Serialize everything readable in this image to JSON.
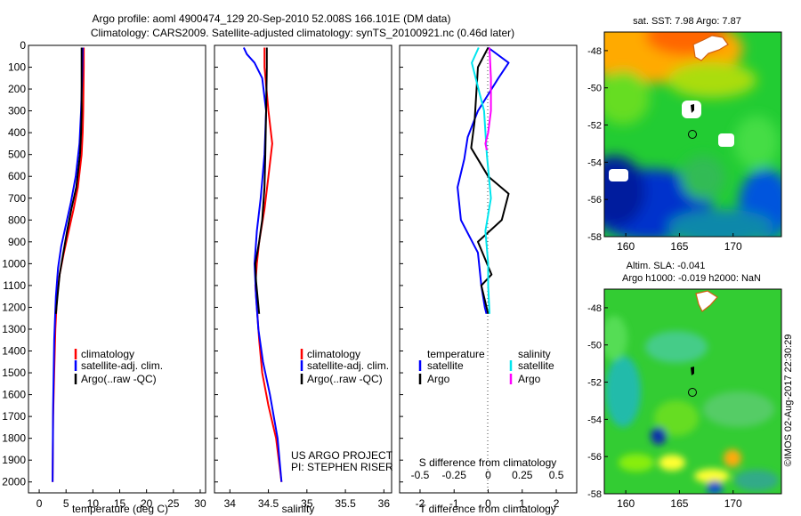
{
  "header": {
    "title_line1": "Argo profile: aoml 4900474_129 20-Sep-2010 52.008S 166.101E (DM data)",
    "title_line2": "Climatology: CARS2009. Satellite-adjusted climatology: synTS_20100921.nc (0.46d later)"
  },
  "colors": {
    "climatology": "#ff0000",
    "satellite": "#0000ff",
    "argo": "#000000",
    "satellite_salinity": "#00e5ee",
    "argo_salinity": "#ff00ff"
  },
  "chart_data": [
    {
      "id": "temperature",
      "type": "line",
      "xlabel": "temperature (deg C)",
      "ylabel": "",
      "xlim": [
        -2,
        31
      ],
      "ylim": [
        2050,
        0
      ],
      "xticks": [
        "0",
        "5",
        "10",
        "15",
        "20",
        "25",
        "30"
      ],
      "yticks": [
        "0",
        "100",
        "200",
        "300",
        "400",
        "500",
        "600",
        "700",
        "800",
        "900",
        "1000",
        "1100",
        "1200",
        "1300",
        "1400",
        "1500",
        "1600",
        "1700",
        "1800",
        "1900",
        "2000"
      ],
      "legend": [
        "climatology",
        "satellite-adj. clim.",
        "Argo(..raw -QC)"
      ],
      "series": [
        {
          "name": "climatology",
          "color": "#ff0000",
          "x": [
            8.3,
            8.3,
            8.2,
            8.1,
            7.9,
            7.2,
            6.4,
            5.5,
            4.6,
            3.8,
            3.3,
            3.0,
            2.8,
            2.6,
            2.5
          ],
          "y": [
            10,
            100,
            300,
            400,
            500,
            650,
            750,
            850,
            950,
            1050,
            1150,
            1300,
            1500,
            1700,
            2000
          ]
        },
        {
          "name": "satellite-adj. clim.",
          "color": "#0000ff",
          "x": [
            8.1,
            8.0,
            7.8,
            7.5,
            6.8,
            5.9,
            5.0,
            4.1,
            3.5,
            3.1,
            2.8,
            2.6,
            2.5
          ],
          "y": [
            10,
            150,
            300,
            450,
            600,
            720,
            820,
            920,
            1020,
            1150,
            1350,
            1650,
            2000
          ]
        },
        {
          "name": "Argo(..raw -QC)",
          "color": "#000000",
          "x": [
            7.9,
            7.9,
            7.9,
            7.8,
            7.6,
            6.9,
            6.0,
            5.2,
            4.5,
            3.8,
            3.4,
            3.1
          ],
          "y": [
            10,
            100,
            300,
            400,
            500,
            650,
            750,
            850,
            950,
            1050,
            1150,
            1230
          ]
        }
      ]
    },
    {
      "id": "salinity",
      "type": "line",
      "xlabel": "salinity",
      "ylabel": "",
      "xlim": [
        33.8,
        36.1
      ],
      "ylim": [
        2050,
        0
      ],
      "xticks": [
        "34",
        "34.5",
        "35",
        "35.5",
        "36"
      ],
      "legend": [
        "climatology",
        "satellite-adj. clim.",
        "Argo(..raw -QC)"
      ],
      "annotation": [
        "US ARGO PROJECT",
        "PI: STEPHEN RISER"
      ],
      "series": [
        {
          "name": "climatology",
          "color": "#ff0000",
          "x": [
            34.45,
            34.45,
            34.5,
            34.55,
            34.5,
            34.45,
            34.38,
            34.35,
            34.33,
            34.35,
            34.38,
            34.42,
            34.5,
            34.6,
            34.67
          ],
          "y": [
            10,
            100,
            300,
            450,
            600,
            750,
            900,
            1000,
            1100,
            1200,
            1350,
            1500,
            1650,
            1800,
            2000
          ]
        },
        {
          "name": "satellite-adj. clim.",
          "color": "#0000ff",
          "x": [
            34.18,
            34.22,
            34.32,
            34.42,
            34.47,
            34.45,
            34.4,
            34.35,
            34.32,
            34.34,
            34.37,
            34.43,
            34.52,
            34.62,
            34.67
          ],
          "y": [
            10,
            40,
            80,
            150,
            300,
            500,
            700,
            850,
            1000,
            1150,
            1300,
            1450,
            1600,
            1800,
            2000
          ]
        },
        {
          "name": "Argo(..raw -QC)",
          "color": "#000000",
          "x": [
            34.48,
            34.48,
            34.47,
            34.46,
            34.45,
            34.42,
            34.38,
            34.33,
            34.34,
            34.38
          ],
          "y": [
            10,
            100,
            300,
            500,
            650,
            800,
            900,
            1000,
            1080,
            1230
          ]
        }
      ]
    },
    {
      "id": "differences",
      "type": "line",
      "xlabel": "T difference from climatology",
      "xlabel2": "S difference from climatology",
      "xlim": [
        -2.6,
        2.6
      ],
      "xlim_salinity": [
        -0.65,
        0.65
      ],
      "ylim": [
        2050,
        0
      ],
      "xticks": [
        "-2",
        "-1",
        "0",
        "1",
        "2"
      ],
      "xticks_salinity": [
        "-0.5",
        "-0.25",
        "0",
        "0.25",
        "0.5"
      ],
      "legend_headers": [
        "temperature",
        "salinity"
      ],
      "legend": [
        "satellite",
        "Argo",
        "satellite",
        "Argo"
      ],
      "series": [
        {
          "name": "satellite",
          "quantity": "temperature",
          "color": "#0000ff",
          "x": [
            0.0,
            0.6,
            0.3,
            -0.3,
            -0.6,
            -0.7,
            -0.9,
            -0.8,
            -0.3,
            -0.2,
            -0.1,
            -0.05
          ],
          "y": [
            10,
            80,
            150,
            300,
            420,
            520,
            650,
            800,
            950,
            1100,
            1200,
            1230
          ]
        },
        {
          "name": "Argo",
          "quantity": "temperature",
          "color": "#000000",
          "x": [
            0.0,
            -0.3,
            -0.4,
            -0.5,
            0.0,
            0.6,
            0.4,
            -0.3,
            0.1,
            -0.2,
            0.0
          ],
          "y": [
            10,
            100,
            350,
            470,
            600,
            680,
            800,
            900,
            1050,
            1100,
            1230
          ]
        },
        {
          "name": "satellite",
          "quantity": "salinity",
          "color": "#00e5ee",
          "x": [
            -0.07,
            -0.12,
            -0.03,
            -0.01,
            0.02,
            -0.02,
            0.0,
            0.0,
            0.01
          ],
          "y": [
            10,
            80,
            300,
            500,
            700,
            850,
            1000,
            1100,
            1230
          ]
        },
        {
          "name": "Argo",
          "quantity": "salinity",
          "color": "#ff00ff",
          "x": [
            0.01,
            0.02,
            0.02,
            0.0,
            -0.02,
            -0.01
          ],
          "y": [
            10,
            150,
            300,
            400,
            450,
            480
          ]
        }
      ]
    },
    {
      "id": "sst-map",
      "type": "heatmap",
      "title": "sat. SST: 7.98 Argo: 7.87",
      "xticks": [
        "160",
        "165",
        "170"
      ],
      "yticks": [
        "-48",
        "-50",
        "-52",
        "-54",
        "-56",
        "-58"
      ],
      "profile_marker": {
        "lon": 166.1,
        "lat": -52.0
      }
    },
    {
      "id": "sla-map",
      "type": "heatmap",
      "title_line1": "Altim. SLA: -0.041",
      "title_line2": "Argo h1000: -0.019 h2000: NaN",
      "xticks": [
        "160",
        "165",
        "170"
      ],
      "yticks": [
        "-48",
        "-50",
        "-52",
        "-54",
        "-56",
        "-58"
      ],
      "profile_marker": {
        "lon": 166.1,
        "lat": -52.0
      }
    }
  ],
  "footer": {
    "credit": "©IMOS 02-Aug-2017 22:30:29"
  }
}
